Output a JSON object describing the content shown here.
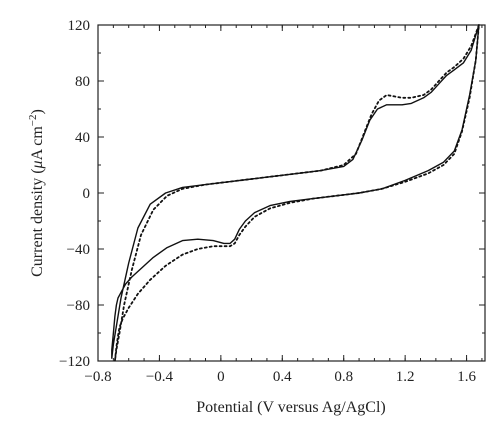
{
  "chart_data": {
    "type": "line",
    "xlabel": "Potential (V versus Ag/AgCl)",
    "ylabel": "Current density (μA cm⁻²)",
    "ylabel_parts": {
      "prefix": "Current density (",
      "mu": "μ",
      "unit": "A cm",
      "exp": "−2",
      "suffix": ")"
    },
    "xlim": [
      -0.8,
      1.72
    ],
    "ylim": [
      -120,
      120
    ],
    "x_ticks": [
      -0.8,
      -0.4,
      0,
      0.4,
      0.8,
      1.2,
      1.6
    ],
    "x_tick_labels": [
      "−0.8",
      "−0.4",
      "0",
      "0.4",
      "0.8",
      "1.2",
      "1.6"
    ],
    "y_ticks": [
      -120,
      -80,
      -40,
      0,
      40,
      80,
      120
    ],
    "y_tick_labels": [
      "−120",
      "−80",
      "−40",
      "0",
      "40",
      "80",
      "120"
    ],
    "grid": false,
    "series": [
      {
        "style": "solid",
        "x": [
          1.68,
          1.63,
          1.58,
          1.52,
          1.47,
          1.42,
          1.37,
          1.32,
          1.24,
          1.18,
          1.13,
          1.08,
          1.02,
          0.97,
          0.92,
          0.86,
          0.8,
          0.65,
          0.5,
          0.35,
          0.2,
          0.05,
          -0.1,
          -0.25,
          -0.36,
          -0.46,
          -0.54,
          -0.6,
          -0.65,
          -0.68,
          -0.7,
          -0.71,
          -0.71,
          -0.7,
          -0.69,
          -0.68,
          -0.67,
          -0.65,
          -0.62,
          -0.58,
          -0.52,
          -0.44,
          -0.35,
          -0.25,
          -0.15,
          -0.05,
          0.02,
          0.06,
          0.09,
          0.12,
          0.16,
          0.22,
          0.32,
          0.45,
          0.6,
          0.75,
          0.9,
          1.05,
          1.2,
          1.35,
          1.45,
          1.52,
          1.57,
          1.62,
          1.66,
          1.68
        ],
        "y": [
          120,
          102,
          93,
          88,
          84,
          78,
          72,
          68,
          64,
          63,
          63,
          63,
          60,
          52,
          38,
          24,
          19,
          16,
          14,
          12,
          10,
          8,
          6,
          4,
          0,
          -8,
          -25,
          -50,
          -75,
          -95,
          -108,
          -118,
          -112,
          -100,
          -88,
          -80,
          -75,
          -71,
          -65,
          -60,
          -54,
          -46,
          -39,
          -34,
          -33,
          -34,
          -36,
          -36,
          -33,
          -26,
          -20,
          -14,
          -9,
          -6,
          -4,
          -2,
          0,
          3,
          9,
          16,
          22,
          30,
          45,
          70,
          95,
          120
        ]
      },
      {
        "style": "dotted",
        "x": [
          1.68,
          1.63,
          1.58,
          1.52,
          1.47,
          1.42,
          1.37,
          1.32,
          1.24,
          1.18,
          1.13,
          1.08,
          1.03,
          0.98,
          0.93,
          0.88,
          0.8,
          0.65,
          0.5,
          0.35,
          0.2,
          0.05,
          -0.1,
          -0.25,
          -0.35,
          -0.44,
          -0.52,
          -0.58,
          -0.63,
          -0.66,
          -0.68,
          -0.69,
          -0.68,
          -0.67,
          -0.66,
          -0.64,
          -0.6,
          -0.54,
          -0.46,
          -0.36,
          -0.25,
          -0.15,
          -0.05,
          0.02,
          0.06,
          0.09,
          0.12,
          0.16,
          0.22,
          0.32,
          0.45,
          0.6,
          0.75,
          0.9,
          1.05,
          1.2,
          1.35,
          1.45,
          1.52,
          1.57,
          1.62,
          1.66,
          1.68
        ],
        "y": [
          120,
          105,
          96,
          90,
          86,
          80,
          74,
          70,
          68,
          68,
          69,
          70,
          66,
          56,
          42,
          28,
          20,
          16,
          14,
          12,
          10,
          8,
          6,
          3,
          -2,
          -12,
          -30,
          -55,
          -80,
          -100,
          -112,
          -120,
          -110,
          -102,
          -96,
          -90,
          -82,
          -72,
          -62,
          -52,
          -44,
          -40,
          -38,
          -38,
          -38,
          -36,
          -30,
          -24,
          -17,
          -11,
          -7,
          -4,
          -2,
          0,
          3,
          8,
          14,
          20,
          28,
          44,
          68,
          95,
          120
        ]
      }
    ]
  }
}
